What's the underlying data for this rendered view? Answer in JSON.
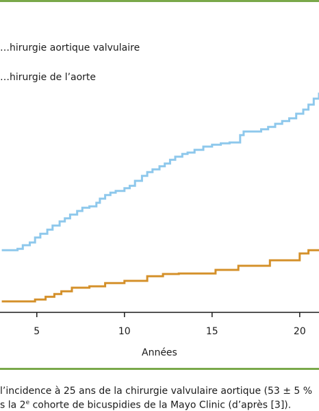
{
  "chart_data": {
    "type": "line",
    "step": true,
    "legend": [
      {
        "label": "…hirurgie aortique valvulaire",
        "color": "#8ec8ec"
      },
      {
        "label": "…hirurgie de l’aorte",
        "color": "#d4902a"
      }
    ],
    "xlabel": "Années",
    "xticks": [
      5,
      10,
      15,
      20
    ],
    "xlim": [
      2.9,
      21.1
    ],
    "ylim": [
      0,
      60
    ],
    "grid": false,
    "series": [
      {
        "name": "…hirurgie aortique valvulaire",
        "color": "#8ec8ec",
        "x": [
          3.0,
          3.9,
          4.2,
          4.6,
          4.9,
          5.2,
          5.6,
          5.9,
          6.3,
          6.6,
          6.9,
          7.3,
          7.6,
          8.0,
          8.4,
          8.6,
          8.9,
          9.2,
          9.5,
          10.0,
          10.3,
          10.6,
          11.0,
          11.3,
          11.6,
          12.0,
          12.3,
          12.6,
          12.9,
          13.3,
          13.6,
          14.0,
          14.5,
          15.0,
          15.5,
          16.0,
          16.6,
          16.8,
          17.4,
          17.8,
          18.2,
          18.6,
          19.0,
          19.4,
          19.8,
          20.2,
          20.5,
          20.8,
          21.1
        ],
        "y": [
          11.2,
          11.5,
          12.3,
          12.9,
          14.0,
          14.8,
          15.7,
          16.6,
          17.5,
          18.2,
          19.0,
          19.8,
          20.5,
          20.8,
          21.6,
          22.5,
          23.3,
          23.8,
          24.2,
          24.8,
          25.3,
          26.4,
          27.5,
          28.3,
          28.9,
          29.6,
          30.2,
          31.0,
          31.7,
          32.3,
          32.6,
          33.2,
          33.9,
          34.3,
          34.6,
          34.8,
          36.4,
          37.2,
          37.2,
          37.7,
          38.2,
          38.9,
          39.5,
          40.1,
          41.1,
          42.0,
          43.1,
          44.4,
          45.7
        ]
      },
      {
        "name": "…hirurgie de l’aorte",
        "color": "#d4902a",
        "x": [
          3.0,
          4.9,
          5.5,
          6.0,
          6.4,
          7.0,
          8.0,
          8.9,
          10.0,
          11.3,
          12.2,
          13.1,
          15.2,
          16.5,
          18.3,
          20.0,
          20.5,
          21.1
        ],
        "y": [
          0.0,
          0.4,
          1.0,
          1.6,
          2.2,
          3.0,
          3.3,
          4.0,
          4.5,
          5.5,
          6.0,
          6.1,
          6.9,
          7.8,
          9.0,
          10.5,
          11.2,
          11.2
        ]
      }
    ]
  },
  "caption": {
    "line1": "l’incidence à 25 ans de la chirurgie valvulaire aortique (53 ± 5 %",
    "line2_pre": "s la 2",
    "line2_sup": "e",
    "line2_post": " cohorte de bicuspidies de la Mayo Clinic (d’après [3])."
  },
  "colors": {
    "rule": "#79a84a",
    "axis": "#1a1a1a"
  }
}
